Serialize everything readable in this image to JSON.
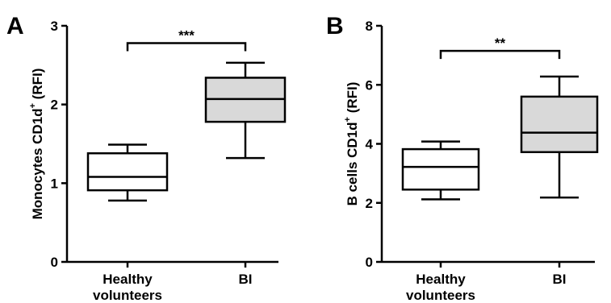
{
  "chart_data": [
    {
      "type": "box",
      "panel": "A",
      "ylabel": "Monocytes CD1d",
      "ylabel_sup": "+",
      "ylabel_suffix": " (RFI)",
      "ylim": [
        0,
        3
      ],
      "yticks": [
        "0",
        "1",
        "2",
        "3"
      ],
      "yticks_values": [
        0,
        1,
        2,
        3
      ],
      "categories": [
        [
          "Healthy",
          "volunteers"
        ],
        [
          "BI"
        ]
      ],
      "boxes": [
        {
          "category": "Healthy volunteers",
          "min": 0.78,
          "q1": 0.91,
          "median": 1.08,
          "q3": 1.38,
          "max": 1.49,
          "fill": "#ffffff"
        },
        {
          "category": "BI",
          "min": 1.32,
          "q1": 1.78,
          "median": 2.07,
          "q3": 2.34,
          "max": 2.53,
          "fill": "#d9d9d9"
        }
      ],
      "significance": {
        "label": "***",
        "between": [
          0,
          1
        ],
        "y": 2.78
      }
    },
    {
      "type": "box",
      "panel": "B",
      "ylabel": "B cells CD1d",
      "ylabel_sup": "+",
      "ylabel_suffix": " (RFI)",
      "ylim": [
        0,
        8
      ],
      "yticks": [
        "0",
        "2",
        "4",
        "6",
        "8"
      ],
      "yticks_values": [
        0,
        2,
        4,
        6,
        8
      ],
      "categories": [
        [
          "Healthy",
          "volunteers"
        ],
        [
          "BI"
        ]
      ],
      "boxes": [
        {
          "category": "Healthy volunteers",
          "min": 2.12,
          "q1": 2.45,
          "median": 3.22,
          "q3": 3.82,
          "max": 4.08,
          "fill": "#ffffff"
        },
        {
          "category": "BI",
          "min": 2.18,
          "q1": 3.72,
          "median": 4.38,
          "q3": 5.6,
          "max": 6.28,
          "fill": "#d9d9d9"
        }
      ],
      "significance": {
        "label": "**",
        "between": [
          0,
          1
        ],
        "y": 7.15
      }
    }
  ]
}
